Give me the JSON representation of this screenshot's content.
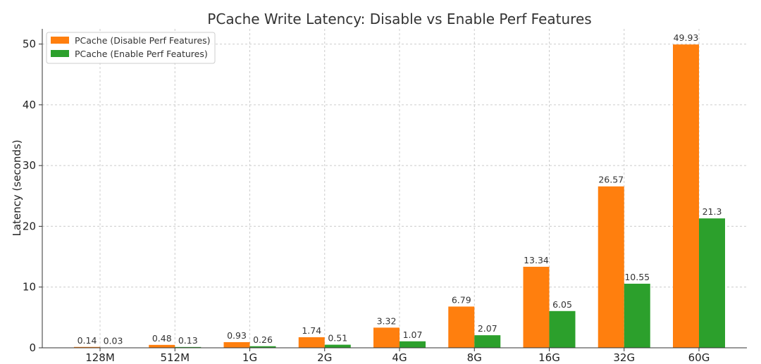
{
  "chart_data": {
    "type": "bar",
    "title": "PCache Write Latency: Disable vs Enable Perf Features",
    "xlabel": "",
    "ylabel": "Latency (seconds)",
    "categories": [
      "128M",
      "512M",
      "1G",
      "2G",
      "4G",
      "8G",
      "16G",
      "32G",
      "60G"
    ],
    "series": [
      {
        "name": "PCache (Disable Perf Features)",
        "color": "#ff7f0e",
        "values": [
          0.14,
          0.48,
          0.93,
          1.74,
          3.32,
          6.79,
          13.34,
          26.57,
          49.93
        ]
      },
      {
        "name": "PCache (Enable Perf Features)",
        "color": "#2ca02c",
        "values": [
          0.03,
          0.13,
          0.26,
          0.51,
          1.07,
          2.07,
          6.05,
          10.55,
          21.3
        ]
      }
    ],
    "ylim": [
      0,
      52.5
    ],
    "yticks": [
      0,
      10,
      20,
      30,
      40,
      50
    ],
    "grid": true,
    "legend_position": "top-left"
  }
}
